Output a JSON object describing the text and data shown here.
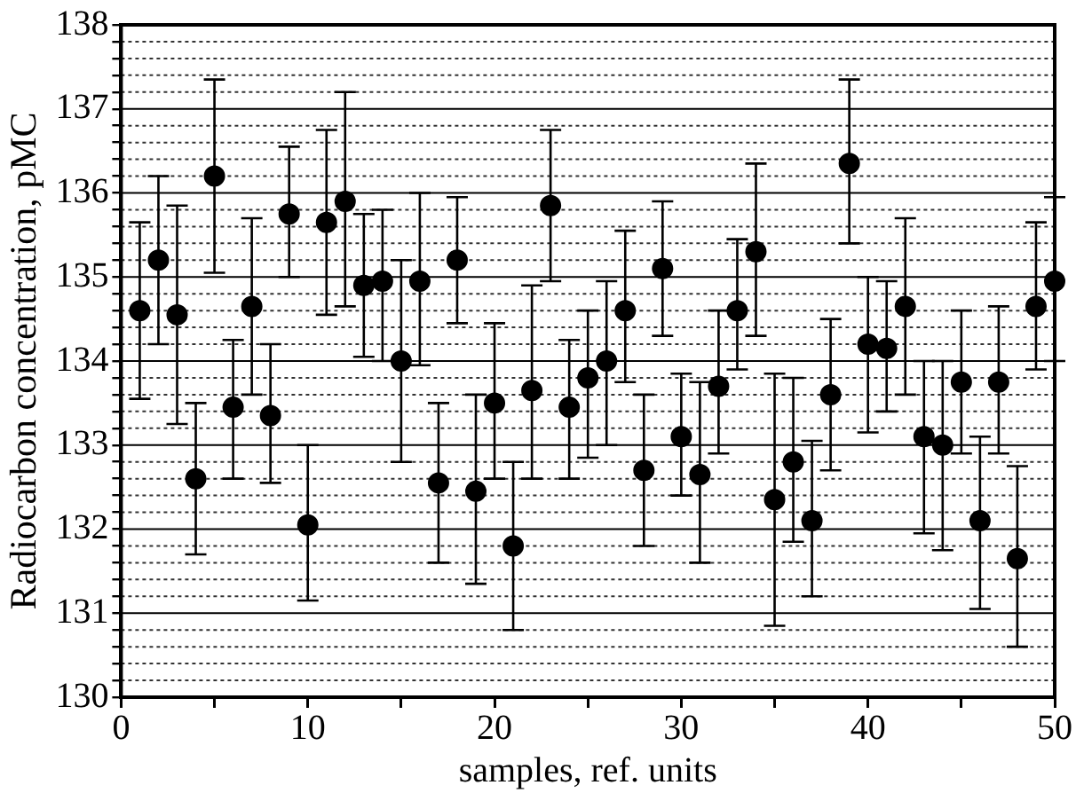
{
  "chart_data": {
    "type": "scatter",
    "xlabel": "samples, ref. units",
    "ylabel": "Radiocarbon concentration, pMC",
    "x": [
      1,
      2,
      3,
      4,
      5,
      6,
      7,
      8,
      9,
      10,
      11,
      12,
      13,
      14,
      15,
      16,
      17,
      18,
      19,
      20,
      21,
      22,
      23,
      24,
      25,
      26,
      27,
      28,
      29,
      30,
      31,
      32,
      33,
      34,
      35,
      36,
      37,
      38,
      39,
      40,
      41,
      42,
      43,
      44,
      45,
      46,
      47,
      48,
      49,
      50
    ],
    "series": [
      {
        "color": "#000000",
        "values": [
          134.6,
          135.2,
          134.55,
          132.6,
          136.2,
          133.45,
          134.65,
          133.35,
          135.75,
          132.05,
          135.65,
          135.9,
          134.9,
          134.95,
          134.0,
          134.95,
          132.55,
          135.2,
          132.45,
          133.5,
          131.8,
          133.65,
          135.85,
          133.45,
          133.8,
          134.0,
          134.6,
          132.7,
          135.1,
          133.1,
          132.65,
          133.7,
          134.6,
          135.3,
          132.35,
          132.8,
          132.1,
          133.6,
          136.35,
          134.2,
          134.15,
          134.65,
          133.1,
          133.0,
          133.75,
          132.1,
          133.75,
          131.65,
          134.65,
          134.95
        ],
        "errors": [
          [
            133.55,
            135.65
          ],
          [
            134.2,
            136.2
          ],
          [
            133.25,
            135.85
          ],
          [
            131.7,
            133.5
          ],
          [
            135.05,
            137.35
          ],
          [
            132.6,
            134.25
          ],
          [
            133.6,
            135.7
          ],
          [
            132.55,
            134.2
          ],
          [
            135.0,
            136.55
          ],
          [
            131.15,
            133.0
          ],
          [
            134.55,
            136.75
          ],
          [
            134.65,
            137.2
          ],
          [
            134.05,
            135.75
          ],
          [
            134.0,
            135.8
          ],
          [
            132.8,
            135.2
          ],
          [
            133.95,
            136.0
          ],
          [
            131.6,
            133.5
          ],
          [
            134.45,
            135.95
          ],
          [
            131.35,
            133.6
          ],
          [
            132.6,
            134.45
          ],
          [
            130.8,
            132.8
          ],
          [
            132.6,
            134.9
          ],
          [
            134.95,
            136.75
          ],
          [
            132.6,
            134.25
          ],
          [
            132.85,
            134.6
          ],
          [
            133.0,
            134.95
          ],
          [
            133.75,
            135.55
          ],
          [
            131.8,
            133.6
          ],
          [
            134.3,
            135.9
          ],
          [
            132.4,
            133.85
          ],
          [
            131.6,
            133.75
          ],
          [
            132.9,
            134.6
          ],
          [
            133.9,
            135.45
          ],
          [
            134.3,
            136.35
          ],
          [
            130.85,
            133.85
          ],
          [
            131.85,
            133.8
          ],
          [
            131.2,
            133.05
          ],
          [
            132.7,
            134.5
          ],
          [
            135.4,
            137.35
          ],
          [
            133.15,
            135.0
          ],
          [
            133.4,
            134.95
          ],
          [
            133.6,
            135.7
          ],
          [
            131.95,
            134.0
          ],
          [
            131.75,
            134.0
          ],
          [
            132.9,
            134.6
          ],
          [
            131.05,
            133.1
          ],
          [
            132.9,
            134.65
          ],
          [
            130.6,
            132.75
          ],
          [
            133.9,
            135.65
          ],
          [
            134.0,
            135.95
          ]
        ]
      }
    ],
    "xlim": [
      0,
      50
    ],
    "xticks": [
      0,
      {
        "value": 5,
        "label": null
      },
      10,
      {
        "value": 15,
        "label": null
      },
      20,
      {
        "value": 25,
        "label": null
      },
      30,
      {
        "value": 35,
        "label": null
      },
      40,
      {
        "value": 45,
        "label": null
      },
      50
    ],
    "ylim": [
      130,
      138
    ],
    "yticks": [
      130,
      {
        "value": 130.2,
        "label": null
      },
      {
        "value": 130.4,
        "label": null
      },
      {
        "value": 130.6,
        "label": null
      },
      {
        "value": 130.8,
        "label": null
      },
      131,
      {
        "value": 131.2,
        "label": null
      },
      {
        "value": 131.4,
        "label": null
      },
      {
        "value": 131.6,
        "label": null
      },
      {
        "value": 131.8,
        "label": null
      },
      132,
      {
        "value": 132.2,
        "label": null
      },
      {
        "value": 132.4,
        "label": null
      },
      {
        "value": 132.6,
        "label": null
      },
      {
        "value": 132.8,
        "label": null
      },
      133,
      {
        "value": 133.2,
        "label": null
      },
      {
        "value": 133.4,
        "label": null
      },
      {
        "value": 133.6,
        "label": null
      },
      {
        "value": 133.8,
        "label": null
      },
      134,
      {
        "value": 134.2,
        "label": null
      },
      {
        "value": 134.4,
        "label": null
      },
      {
        "value": 134.6,
        "label": null
      },
      {
        "value": 134.8,
        "label": null
      },
      135,
      {
        "value": 135.2,
        "label": null
      },
      {
        "value": 135.4,
        "label": null
      },
      {
        "value": 135.6,
        "label": null
      },
      {
        "value": 135.8,
        "label": null
      },
      136,
      {
        "value": 136.2,
        "label": null
      },
      {
        "value": 136.4,
        "label": null
      },
      {
        "value": 136.6,
        "label": null
      },
      {
        "value": 136.8,
        "label": null
      },
      137,
      {
        "value": 137.2,
        "label": null
      },
      {
        "value": 137.4,
        "label": null
      },
      {
        "value": 137.6,
        "label": null
      },
      {
        "value": 137.8,
        "label": null
      },
      138
    ],
    "grid": "y",
    "marker": "circle",
    "legend": false
  }
}
